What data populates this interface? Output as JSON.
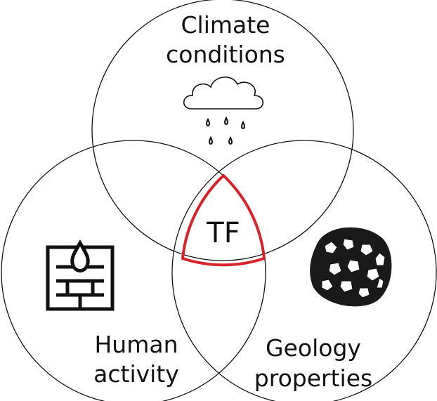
{
  "circles": [
    {
      "label_lines": [
        "Climate",
        "conditions"
      ]
    },
    {
      "label_lines": [
        "Human",
        "activity"
      ]
    },
    {
      "label_lines": [
        "Geology",
        "properties"
      ]
    }
  ],
  "center": {
    "label": "TF"
  }
}
